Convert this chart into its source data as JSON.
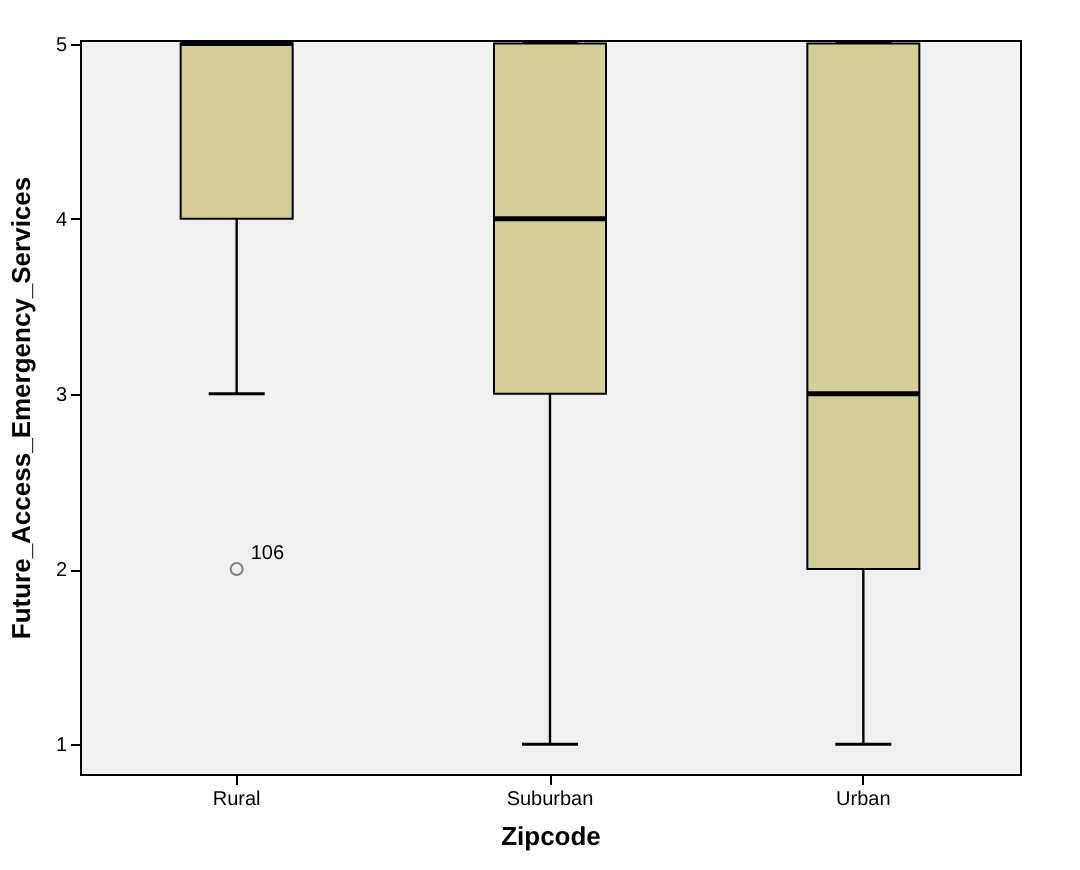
{
  "chart_data": {
    "type": "box",
    "xlabel": "Zipcode",
    "ylabel": "Future_Access_Emergency_Services",
    "categories": [
      "Rural",
      "Suburban",
      "Urban"
    ],
    "color": "#d3ce97",
    "boxes": [
      {
        "low": 3,
        "q1": 4,
        "median": 5,
        "q3": 5,
        "high": 5,
        "outliers": [
          2
        ]
      },
      {
        "low": 1,
        "q1": 3,
        "median": 4,
        "q3": 5,
        "high": 5
      },
      {
        "low": 1,
        "q1": 2,
        "median": 3,
        "q3": 5,
        "high": 5
      }
    ],
    "ylim": [
      0.83,
      5.02
    ],
    "yticks": [
      1,
      2,
      3,
      4,
      5
    ],
    "annotations": [
      "106"
    ]
  }
}
